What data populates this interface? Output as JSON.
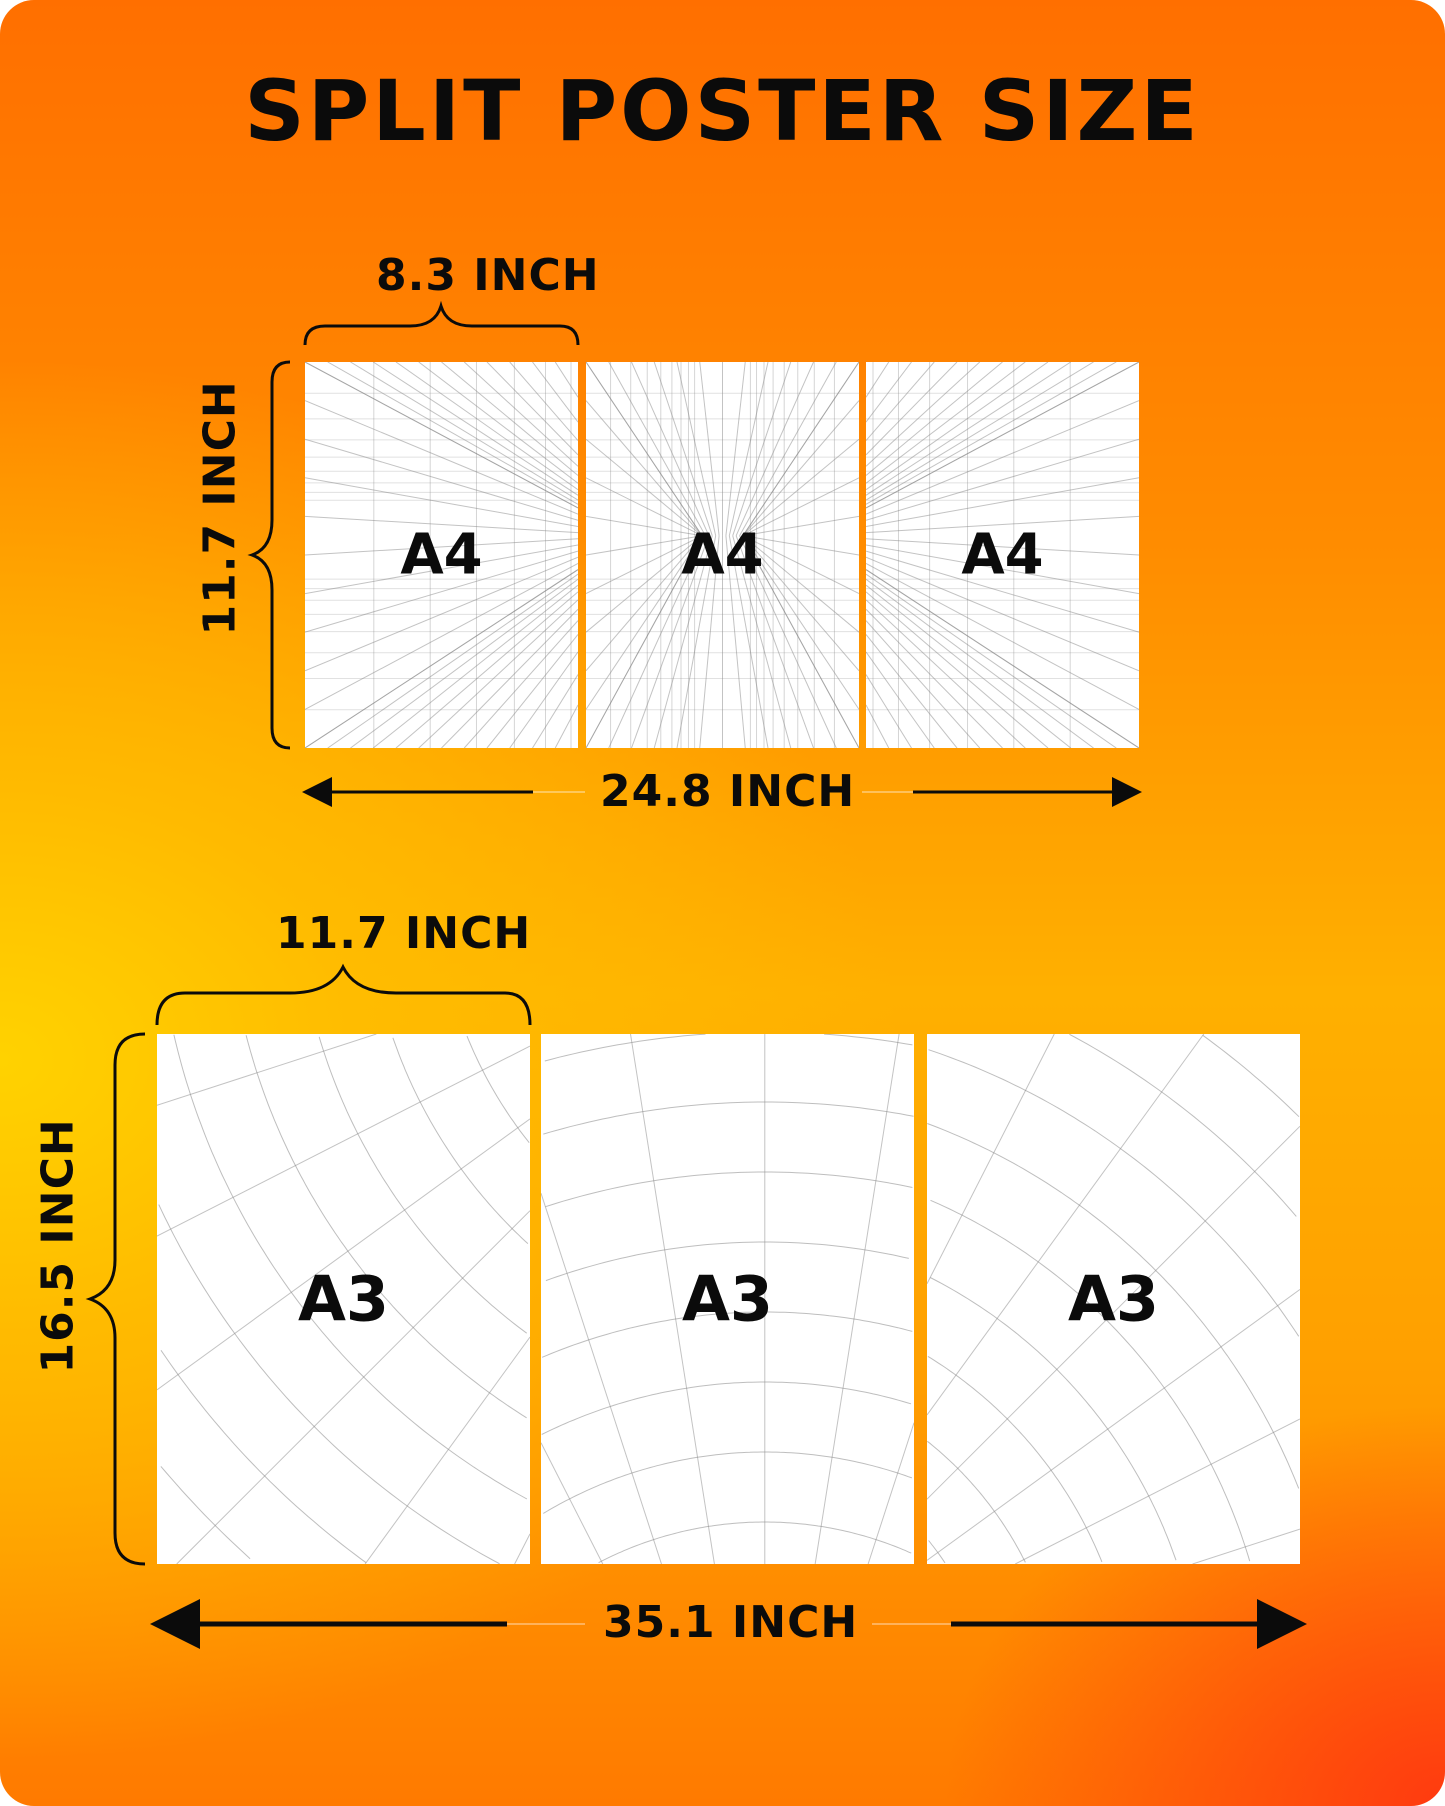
{
  "title": "SPLIT POSTER SIZE",
  "colors": {
    "background_top": "#ff6f00",
    "background_mid_left": "#ffd200",
    "background_bottom_right": "#ff3a10",
    "panel": "#ffffff",
    "text": "#0b0b0b"
  },
  "a4_section": {
    "width_label": "8.3 INCH",
    "height_label": "11.7 INCH",
    "total_width_label": "24.8 INCH",
    "panels": [
      {
        "label": "A4"
      },
      {
        "label": "A4"
      },
      {
        "label": "A4"
      }
    ]
  },
  "a3_section": {
    "width_label": "11.7 INCH",
    "height_label": "16.5 INCH",
    "total_width_label": "35.1 INCH",
    "panels": [
      {
        "label": "A3"
      },
      {
        "label": "A3"
      },
      {
        "label": "A3"
      }
    ]
  }
}
